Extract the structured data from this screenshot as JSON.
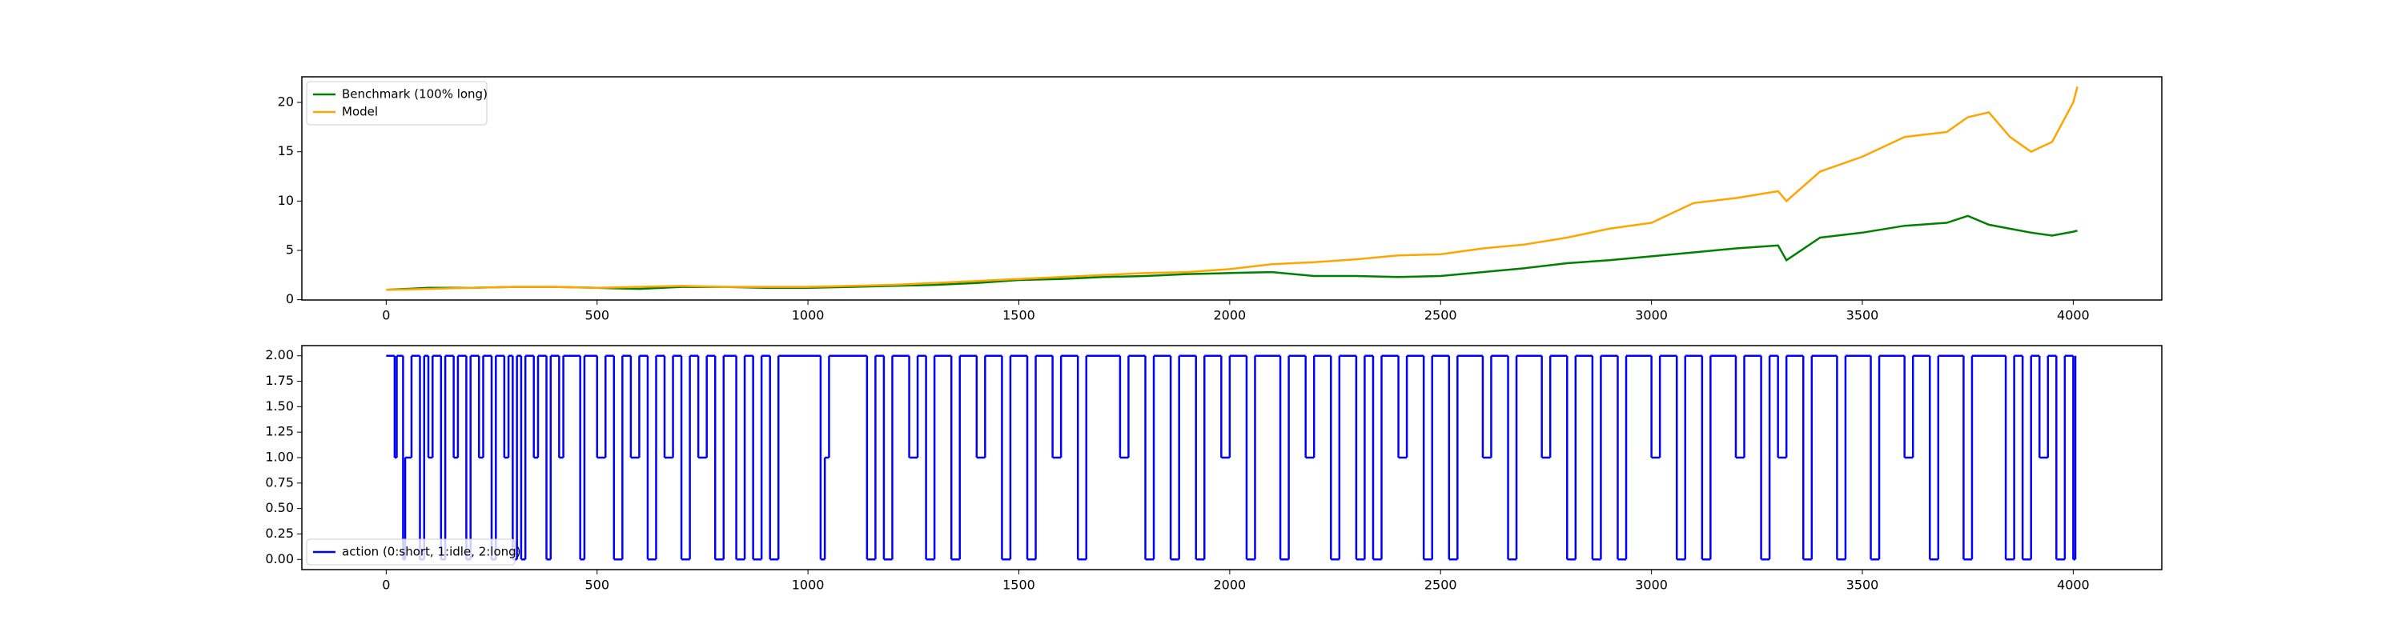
{
  "chart_data": [
    {
      "type": "line",
      "xlim": [
        -200,
        4210
      ],
      "ylim": [
        -0.03,
        22.6
      ],
      "xticks": [
        0,
        500,
        1000,
        1500,
        2000,
        2500,
        3000,
        3500,
        4000
      ],
      "yticks": [
        0,
        5,
        10,
        15,
        20
      ],
      "legend": "upper left",
      "x": [
        0,
        100,
        200,
        300,
        400,
        500,
        600,
        700,
        800,
        900,
        1000,
        1100,
        1200,
        1300,
        1400,
        1500,
        1600,
        1700,
        1800,
        1900,
        2000,
        2100,
        2200,
        2300,
        2400,
        2500,
        2600,
        2700,
        2800,
        2900,
        3000,
        3100,
        3200,
        3300,
        3320,
        3400,
        3500,
        3600,
        3700,
        3750,
        3800,
        3850,
        3900,
        3950,
        4000,
        4010
      ],
      "series": [
        {
          "name": "Benchmark (100% long)",
          "color": "#008000",
          "values": [
            1,
            1.2,
            1.2,
            1.3,
            1.3,
            1.2,
            1.1,
            1.3,
            1.3,
            1.2,
            1.2,
            1.3,
            1.4,
            1.5,
            1.7,
            2.0,
            2.1,
            2.3,
            2.4,
            2.6,
            2.7,
            2.8,
            2.4,
            2.4,
            2.3,
            2.4,
            2.8,
            3.2,
            3.7,
            4.0,
            4.4,
            4.8,
            5.2,
            5.5,
            4.0,
            6.3,
            6.8,
            7.5,
            7.8,
            8.5,
            7.6,
            7.2,
            6.8,
            6.5,
            6.9,
            7.0
          ]
        },
        {
          "name": "Model",
          "color": "#ffa500",
          "values": [
            1,
            1.1,
            1.2,
            1.3,
            1.3,
            1.2,
            1.3,
            1.4,
            1.3,
            1.3,
            1.3,
            1.4,
            1.5,
            1.7,
            1.9,
            2.1,
            2.3,
            2.5,
            2.7,
            2.8,
            3.1,
            3.6,
            3.8,
            4.1,
            4.5,
            4.6,
            5.2,
            5.6,
            6.3,
            7.2,
            7.8,
            9.8,
            10.3,
            11.0,
            10.0,
            13.0,
            14.5,
            16.5,
            17.0,
            18.5,
            19.0,
            16.5,
            15.0,
            16.0,
            20.0,
            21.6
          ]
        }
      ]
    },
    {
      "type": "step",
      "xlim": [
        -200,
        4210
      ],
      "ylim": [
        -0.1,
        2.1
      ],
      "xticks": [
        0,
        500,
        1000,
        1500,
        2000,
        2500,
        3000,
        3500,
        4000
      ],
      "yticks": [
        {
          "value": 0,
          "label": "0.00"
        },
        {
          "value": 0.25,
          "label": "0.25"
        },
        {
          "value": 0.5,
          "label": "0.50"
        },
        {
          "value": 0.75,
          "label": "0.75"
        },
        {
          "value": 1,
          "label": "1.00"
        },
        {
          "value": 1.25,
          "label": "1.25"
        },
        {
          "value": 1.5,
          "label": "1.50"
        },
        {
          "value": 1.75,
          "label": "1.75"
        },
        {
          "value": 2,
          "label": "2.00"
        }
      ],
      "legend": "lower left",
      "x": [
        0,
        20,
        25,
        40,
        45,
        60,
        80,
        90,
        100,
        110,
        130,
        140,
        160,
        170,
        190,
        200,
        220,
        230,
        250,
        260,
        280,
        290,
        300,
        310,
        320,
        330,
        350,
        360,
        380,
        390,
        410,
        420,
        460,
        470,
        500,
        520,
        540,
        560,
        580,
        600,
        620,
        640,
        660,
        680,
        700,
        720,
        740,
        760,
        780,
        800,
        830,
        850,
        870,
        890,
        910,
        930,
        1030,
        1040,
        1050,
        1140,
        1160,
        1180,
        1200,
        1240,
        1260,
        1280,
        1300,
        1340,
        1360,
        1400,
        1420,
        1460,
        1480,
        1520,
        1540,
        1580,
        1600,
        1640,
        1660,
        1740,
        1760,
        1800,
        1820,
        1860,
        1880,
        1920,
        1940,
        1980,
        2000,
        2040,
        2060,
        2120,
        2140,
        2180,
        2200,
        2240,
        2260,
        2300,
        2320,
        2340,
        2360,
        2400,
        2420,
        2460,
        2480,
        2520,
        2540,
        2600,
        2620,
        2660,
        2680,
        2740,
        2760,
        2800,
        2820,
        2860,
        2880,
        2920,
        2940,
        3000,
        3020,
        3060,
        3080,
        3120,
        3140,
        3200,
        3220,
        3260,
        3280,
        3300,
        3320,
        3360,
        3380,
        3440,
        3460,
        3520,
        3540,
        3600,
        3620,
        3660,
        3680,
        3740,
        3760,
        3840,
        3860,
        3880,
        3900,
        3920,
        3940,
        3960,
        3980,
        4000,
        4005
      ],
      "series": [
        {
          "name": "action (0:short, 1:idle, 2:long)",
          "color": "#0000ff",
          "values": [
            2,
            1,
            2,
            0,
            1,
            2,
            0,
            2,
            1,
            2,
            0,
            2,
            1,
            2,
            0,
            2,
            1,
            2,
            0,
            2,
            1,
            2,
            0,
            2,
            0,
            2,
            1,
            2,
            0,
            2,
            1,
            2,
            0,
            2,
            1,
            2,
            0,
            2,
            1,
            2,
            0,
            2,
            1,
            2,
            0,
            2,
            1,
            2,
            0,
            2,
            0,
            2,
            0,
            2,
            0,
            2,
            0,
            1,
            2,
            0,
            2,
            0,
            2,
            1,
            2,
            0,
            2,
            0,
            2,
            1,
            2,
            0,
            2,
            0,
            2,
            1,
            2,
            0,
            2,
            1,
            2,
            0,
            2,
            0,
            2,
            0,
            2,
            1,
            2,
            0,
            2,
            0,
            2,
            1,
            2,
            0,
            2,
            0,
            2,
            0,
            2,
            1,
            2,
            0,
            2,
            0,
            2,
            1,
            2,
            0,
            2,
            1,
            2,
            0,
            2,
            0,
            2,
            0,
            2,
            1,
            2,
            0,
            2,
            0,
            2,
            1,
            2,
            0,
            2,
            1,
            2,
            0,
            2,
            0,
            2,
            0,
            2,
            1,
            2,
            0,
            2,
            0,
            2,
            0,
            2,
            0,
            2,
            1,
            2,
            0,
            2,
            0,
            2
          ]
        }
      ]
    }
  ]
}
